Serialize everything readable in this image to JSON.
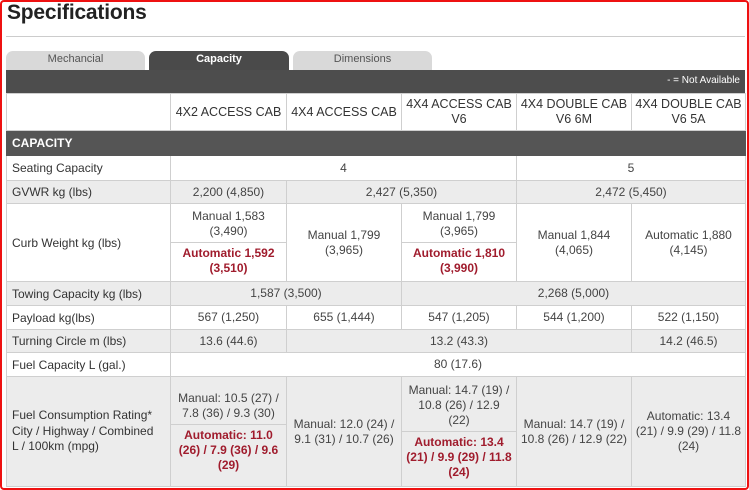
{
  "page": {
    "title": "Specifications"
  },
  "tabs": [
    {
      "label": "Mechancial"
    },
    {
      "label": "Capacity"
    },
    {
      "label": "Dimensions"
    }
  ],
  "legend": "- = Not Available",
  "columns": [
    "4X2 ACCESS CAB",
    "4X4 ACCESS CAB",
    "4X4 ACCESS CAB V6",
    "4X4 DOUBLE CAB V6 6M",
    "4X4 DOUBLE CAB V6 5A"
  ],
  "section": "CAPACITY",
  "rows": {
    "seating": {
      "label": "Seating Capacity",
      "v1": "4",
      "v2": "5"
    },
    "gvwr": {
      "label": "GVWR kg (lbs)",
      "v1": "2,200 (4,850)",
      "v2": "2,427 (5,350)",
      "v3": "2,472 (5,450)"
    },
    "curb": {
      "label": "Curb Weight kg (lbs)",
      "c1_manual": "Manual 1,583 (3,490)",
      "c1_auto": "Automatic 1,592 (3,510)",
      "c2": "Manual 1,799 (3,965)",
      "c3_manual": "Manual 1,799 (3,965)",
      "c3_auto": "Automatic 1,810 (3,990)",
      "c4": "Manual 1,844 (4,065)",
      "c5": "Automatic 1,880 (4,145)"
    },
    "towing": {
      "label": "Towing Capacity kg (lbs)",
      "v1": "1,587 (3,500)",
      "v2": "2,268 (5,000)"
    },
    "payload": {
      "label": "Payload kg(lbs)",
      "c1": "567 (1,250)",
      "c2": "655 (1,444)",
      "c3": "547 (1,205)",
      "c4": "544 (1,200)",
      "c5": "522 (1,150)"
    },
    "turning": {
      "label": "Turning Circle m (lbs)",
      "v1": "13.6 (44.6)",
      "v2": "13.2 (43.3)",
      "v3": "14.2 (46.5)"
    },
    "fuelcap": {
      "label": "Fuel Capacity L (gal.)",
      "v1": "80 (17.6)"
    },
    "fuelcons": {
      "label": "Fuel Consumption Rating* City / Highway / Combined L / 100km (mpg)",
      "c1_manual": "Manual: 10.5 (27) / 7.8 (36) / 9.3 (30)",
      "c1_auto": "Automatic: 11.0 (26) / 7.9 (36) / 9.6 (29)",
      "c2": "Manual: 12.0 (24) / 9.1 (31) / 10.7 (26)",
      "c3_manual": "Manual: 14.7 (19) / 10.8 (26) / 12.9 (22)",
      "c3_auto": "Automatic: 13.4 (21) / 9.9 (29) / 11.8 (24)",
      "c4": "Manual: 14.7 (19) / 10.8 (26) / 12.9 (22)",
      "c5": "Automatic: 13.4 (21) / 9.9 (29) / 11.8 (24)"
    }
  }
}
